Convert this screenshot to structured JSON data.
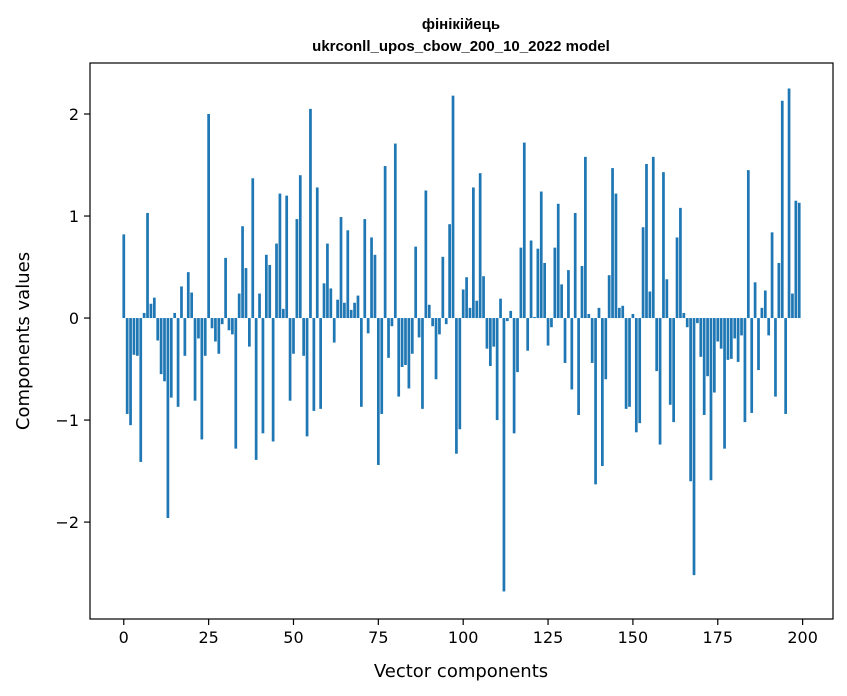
{
  "chart_data": {
    "type": "bar",
    "title": "фінікійець",
    "subtitle": "ukrconll_upos_cbow_200_10_2022 model",
    "xlabel": "Vector components",
    "ylabel": "Components values",
    "xlim": [
      -9.95,
      208.95
    ],
    "ylim": [
      -2.95,
      2.5
    ],
    "xticks": [
      0,
      25,
      50,
      75,
      100,
      125,
      150,
      175,
      200
    ],
    "yticks": [
      -2,
      -1,
      0,
      1,
      2
    ],
    "ytick_labels": [
      "−2",
      "−1",
      "0",
      "1",
      "2"
    ],
    "bar_color": "#1f77b4",
    "grid": false,
    "values": [
      0.82,
      -0.94,
      -1.05,
      -0.36,
      -0.37,
      -1.41,
      0.05,
      1.03,
      0.14,
      0.2,
      -0.22,
      -0.55,
      -0.62,
      -1.96,
      -0.78,
      0.05,
      -0.87,
      0.31,
      -0.37,
      0.45,
      0.25,
      -0.81,
      -0.2,
      -1.19,
      -0.37,
      2.0,
      -0.1,
      -0.23,
      -0.35,
      -0.06,
      0.59,
      -0.12,
      -0.16,
      -1.28,
      0.24,
      0.9,
      0.49,
      -0.28,
      1.37,
      -1.39,
      0.24,
      -1.13,
      0.62,
      0.52,
      -1.21,
      0.73,
      1.22,
      0.09,
      1.2,
      -0.81,
      -0.35,
      0.97,
      1.4,
      -0.37,
      -1.16,
      2.05,
      -0.91,
      1.28,
      -0.89,
      0.34,
      0.73,
      0.29,
      -0.24,
      0.18,
      0.99,
      0.15,
      0.86,
      0.08,
      0.15,
      0.22,
      -0.87,
      0.97,
      -0.15,
      0.79,
      0.62,
      -1.44,
      -0.94,
      1.49,
      -0.39,
      -0.08,
      1.71,
      -0.77,
      -0.48,
      -0.46,
      -0.69,
      -0.35,
      0.7,
      -0.19,
      -0.89,
      1.25,
      0.13,
      -0.08,
      -0.6,
      -0.16,
      0.6,
      -0.06,
      0.92,
      2.18,
      -1.33,
      -1.09,
      0.28,
      0.4,
      0.1,
      1.28,
      0.17,
      1.42,
      0.41,
      -0.3,
      -0.47,
      -0.28,
      -1.0,
      0.19,
      -2.68,
      -0.03,
      0.07,
      -1.13,
      -0.53,
      0.69,
      1.72,
      -0.32,
      0.76,
      0.01,
      0.68,
      1.24,
      0.54,
      -0.27,
      -0.09,
      0.69,
      1.12,
      0.33,
      -0.44,
      0.47,
      -0.7,
      1.03,
      -0.95,
      0.51,
      1.58,
      0.04,
      -0.44,
      -1.63,
      0.1,
      -1.45,
      -0.6,
      0.42,
      1.47,
      1.22,
      0.1,
      0.12,
      -0.89,
      -0.87,
      0.04,
      -1.12,
      -1.03,
      0.89,
      1.51,
      0.26,
      1.58,
      -0.52,
      -1.24,
      1.43,
      0.38,
      -0.85,
      -1.02,
      0.79,
      1.08,
      0.05,
      -0.09,
      -1.6,
      -2.52,
      -0.05,
      -0.38,
      -0.95,
      -0.57,
      -1.59,
      -0.73,
      -0.23,
      -0.3,
      -1.28,
      -0.41,
      -0.4,
      -0.2,
      -0.43,
      -0.17,
      -1.02,
      1.45,
      -0.93,
      0.35,
      -0.51,
      0.1,
      0.27,
      -0.17,
      0.84,
      -0.77,
      0.54,
      2.13,
      -0.94,
      2.25,
      0.24,
      1.15,
      1.13
    ]
  }
}
